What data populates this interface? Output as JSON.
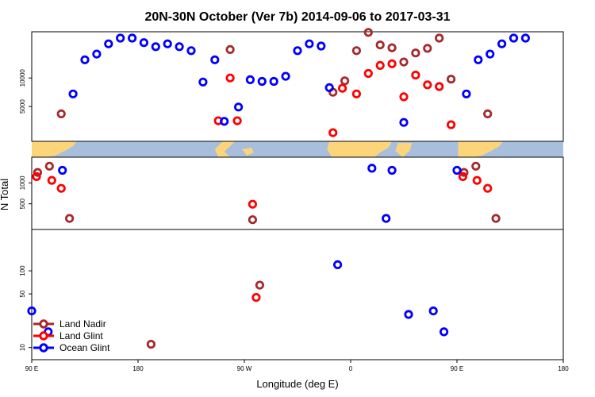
{
  "chart_data": {
    "type": "scatter",
    "title": "20N-30N October (Ver 7b)   2014-09-06 to 2017-03-31",
    "xlabel": "Longitude (deg E)",
    "ylabel": "N Total",
    "x_ticks": [
      {
        "value": 90,
        "label": "90 E"
      },
      {
        "value": 180,
        "label": "180"
      },
      {
        "value": 270,
        "label": "90 W"
      },
      {
        "value": 360,
        "label": "0"
      },
      {
        "value": 450,
        "label": "90 E"
      },
      {
        "value": 540,
        "label": "180"
      }
    ],
    "xlim": [
      90,
      540
    ],
    "grid": false,
    "legend_position": "bottom-left",
    "upper_panel": {
      "scale": "linear",
      "ylim": [
        0,
        17000
      ],
      "y_ticks": [
        {
          "value": 5000,
          "label": "5000"
        },
        {
          "value": 10000,
          "label": "10000"
        }
      ]
    },
    "middle_panel": {
      "scale": "linear",
      "ylim": [
        0,
        1500
      ],
      "y_ticks": [
        {
          "value": 500,
          "label": "500"
        },
        {
          "value": 1000,
          "label": "1000"
        }
      ]
    },
    "lower_panel": {
      "scale": "log",
      "ylim": [
        8,
        300
      ],
      "y_ticks": [
        {
          "value": 10,
          "label": "10"
        },
        {
          "value": 50,
          "label": "50"
        },
        {
          "value": 100,
          "label": "100"
        }
      ]
    },
    "series": [
      {
        "name": "Land Nadir",
        "color": "#a52a2a",
        "points": [
          {
            "x": 95,
            "panel": "middle",
            "y": 1250
          },
          {
            "x": 105,
            "panel": "middle",
            "y": 1400
          },
          {
            "x": 115,
            "panel": "upper",
            "y": 3700
          },
          {
            "x": 122,
            "panel": "middle",
            "y": 150
          },
          {
            "x": 191,
            "panel": "lower",
            "y": 11
          },
          {
            "x": 258,
            "panel": "upper",
            "y": 15000
          },
          {
            "x": 277,
            "panel": "middle",
            "y": 120
          },
          {
            "x": 283,
            "panel": "lower",
            "y": 65
          },
          {
            "x": 345,
            "panel": "upper",
            "y": 7500
          },
          {
            "x": 355,
            "panel": "upper",
            "y": 9500
          },
          {
            "x": 365,
            "panel": "upper",
            "y": 14800
          },
          {
            "x": 375,
            "panel": "upper",
            "y": 18000
          },
          {
            "x": 385,
            "panel": "upper",
            "y": 15800
          },
          {
            "x": 395,
            "panel": "upper",
            "y": 15300
          },
          {
            "x": 405,
            "panel": "upper",
            "y": 12800
          },
          {
            "x": 415,
            "panel": "upper",
            "y": 14400
          },
          {
            "x": 425,
            "panel": "upper",
            "y": 15200
          },
          {
            "x": 435,
            "panel": "upper",
            "y": 17000
          },
          {
            "x": 445,
            "panel": "upper",
            "y": 9800
          },
          {
            "x": 456,
            "panel": "middle",
            "y": 1250
          },
          {
            "x": 466,
            "panel": "middle",
            "y": 1400
          },
          {
            "x": 476,
            "panel": "upper",
            "y": 3700
          },
          {
            "x": 483,
            "panel": "middle",
            "y": 150
          }
        ]
      },
      {
        "name": "Land Glint",
        "color": "#ff0000",
        "points": [
          {
            "x": 94,
            "panel": "middle",
            "y": 1150
          },
          {
            "x": 107,
            "panel": "middle",
            "y": 1060
          },
          {
            "x": 115,
            "panel": "middle",
            "y": 870
          },
          {
            "x": 248,
            "panel": "upper",
            "y": 2500
          },
          {
            "x": 258,
            "panel": "upper",
            "y": 10000
          },
          {
            "x": 264,
            "panel": "upper",
            "y": 2500
          },
          {
            "x": 277,
            "panel": "middle",
            "y": 490
          },
          {
            "x": 280,
            "panel": "lower",
            "y": 45
          },
          {
            "x": 345,
            "panel": "upper",
            "y": 400
          },
          {
            "x": 353,
            "panel": "upper",
            "y": 8200
          },
          {
            "x": 365,
            "panel": "upper",
            "y": 7200
          },
          {
            "x": 375,
            "panel": "upper",
            "y": 10800
          },
          {
            "x": 385,
            "panel": "upper",
            "y": 12200
          },
          {
            "x": 395,
            "panel": "upper",
            "y": 12500
          },
          {
            "x": 405,
            "panel": "upper",
            "y": 6700
          },
          {
            "x": 415,
            "panel": "upper",
            "y": 10500
          },
          {
            "x": 425,
            "panel": "upper",
            "y": 8800
          },
          {
            "x": 435,
            "panel": "upper",
            "y": 8500
          },
          {
            "x": 445,
            "panel": "upper",
            "y": 1800
          },
          {
            "x": 455,
            "panel": "middle",
            "y": 1150
          },
          {
            "x": 467,
            "panel": "middle",
            "y": 1060
          },
          {
            "x": 476,
            "panel": "middle",
            "y": 870
          }
        ]
      },
      {
        "name": "Ocean Glint",
        "color": "#0000ff",
        "points": [
          {
            "x": 90,
            "panel": "lower",
            "y": 30
          },
          {
            "x": 104,
            "panel": "lower",
            "y": 16
          },
          {
            "x": 116,
            "panel": "middle",
            "y": 1300
          },
          {
            "x": 125,
            "panel": "upper",
            "y": 7200
          },
          {
            "x": 135,
            "panel": "upper",
            "y": 13200
          },
          {
            "x": 145,
            "panel": "upper",
            "y": 14200
          },
          {
            "x": 155,
            "panel": "upper",
            "y": 16000
          },
          {
            "x": 165,
            "panel": "upper",
            "y": 17000
          },
          {
            "x": 175,
            "panel": "upper",
            "y": 17000
          },
          {
            "x": 185,
            "panel": "upper",
            "y": 16200
          },
          {
            "x": 195,
            "panel": "upper",
            "y": 15500
          },
          {
            "x": 205,
            "panel": "upper",
            "y": 16000
          },
          {
            "x": 215,
            "panel": "upper",
            "y": 15500
          },
          {
            "x": 225,
            "panel": "upper",
            "y": 14800
          },
          {
            "x": 235,
            "panel": "upper",
            "y": 9300
          },
          {
            "x": 245,
            "panel": "upper",
            "y": 13200
          },
          {
            "x": 253,
            "panel": "upper",
            "y": 2400
          },
          {
            "x": 265,
            "panel": "upper",
            "y": 4900
          },
          {
            "x": 275,
            "panel": "upper",
            "y": 9700
          },
          {
            "x": 285,
            "panel": "upper",
            "y": 9400
          },
          {
            "x": 295,
            "panel": "upper",
            "y": 9400
          },
          {
            "x": 305,
            "panel": "upper",
            "y": 10300
          },
          {
            "x": 315,
            "panel": "upper",
            "y": 14800
          },
          {
            "x": 325,
            "panel": "upper",
            "y": 16000
          },
          {
            "x": 335,
            "panel": "upper",
            "y": 15600
          },
          {
            "x": 342,
            "panel": "upper",
            "y": 8300
          },
          {
            "x": 349,
            "panel": "lower",
            "y": 120
          },
          {
            "x": 378,
            "panel": "middle",
            "y": 1350
          },
          {
            "x": 390,
            "panel": "middle",
            "y": 150
          },
          {
            "x": 395,
            "panel": "middle",
            "y": 1300
          },
          {
            "x": 405,
            "panel": "upper",
            "y": 2200
          },
          {
            "x": 409,
            "panel": "lower",
            "y": 27
          },
          {
            "x": 430,
            "panel": "lower",
            "y": 30
          },
          {
            "x": 439,
            "panel": "lower",
            "y": 16
          },
          {
            "x": 450,
            "panel": "middle",
            "y": 1300
          },
          {
            "x": 458,
            "panel": "upper",
            "y": 7200
          },
          {
            "x": 468,
            "panel": "upper",
            "y": 13200
          },
          {
            "x": 478,
            "panel": "upper",
            "y": 14200
          },
          {
            "x": 488,
            "panel": "upper",
            "y": 16000
          },
          {
            "x": 498,
            "panel": "upper",
            "y": 17000
          },
          {
            "x": 508,
            "panel": "upper",
            "y": 17000
          }
        ]
      }
    ]
  },
  "legend": {
    "items": [
      {
        "label": "Land Nadir",
        "color": "#a52a2a"
      },
      {
        "label": "Land Glint",
        "color": "#ff0000"
      },
      {
        "label": "Ocean Glint",
        "color": "#0000ff"
      }
    ]
  },
  "map_band": {
    "ocean_color": "#a7bedd",
    "land_color": "#fcd57a"
  }
}
